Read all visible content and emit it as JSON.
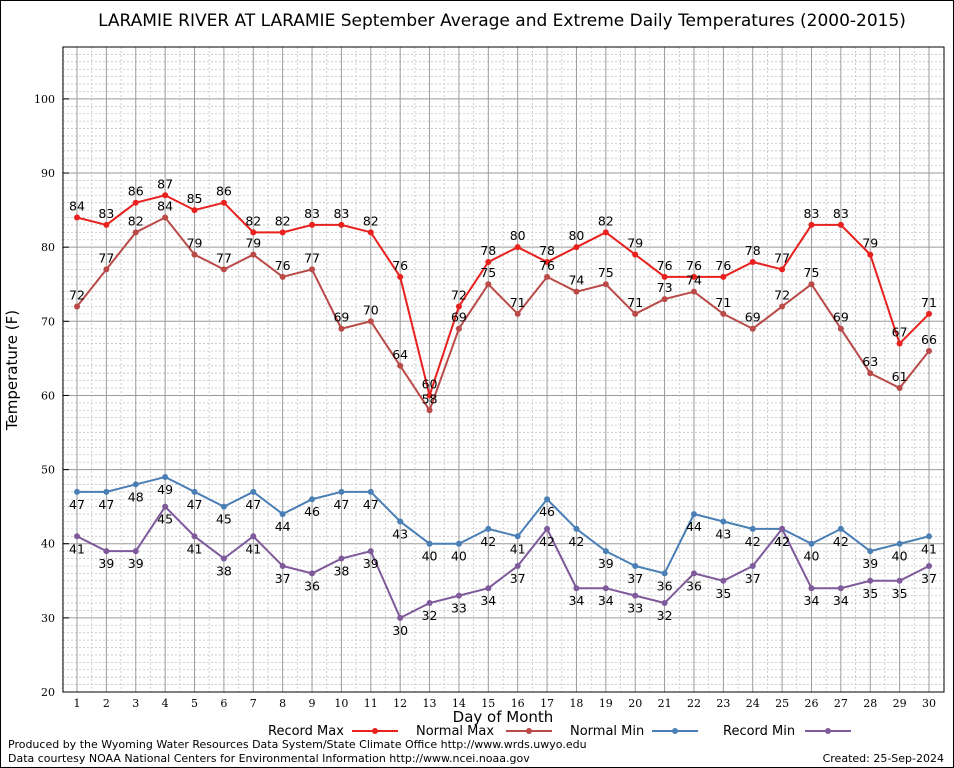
{
  "chart_data": {
    "type": "line",
    "title": "LARAMIE RIVER AT LARAMIE September Average and Extreme Daily Temperatures (2000-2015)",
    "xlabel": "Day of Month",
    "ylabel": "Temperature (F)",
    "x": [
      1,
      2,
      3,
      4,
      5,
      6,
      7,
      8,
      9,
      10,
      11,
      12,
      13,
      14,
      15,
      16,
      17,
      18,
      19,
      20,
      21,
      22,
      23,
      24,
      25,
      26,
      27,
      28,
      29,
      30
    ],
    "xlim": [
      1,
      30
    ],
    "ylim": [
      20,
      107
    ],
    "yticks": [
      20,
      30,
      40,
      50,
      60,
      70,
      80,
      90,
      100
    ],
    "grid": true,
    "legend_position": "bottom",
    "series": [
      {
        "name": "Record Max",
        "color": "#e8201e",
        "values": [
          84,
          83,
          86,
          87,
          85,
          86,
          82,
          82,
          83,
          83,
          82,
          76,
          60,
          72,
          78,
          80,
          78,
          80,
          82,
          79,
          76,
          76,
          76,
          78,
          77,
          83,
          83,
          79,
          67,
          71
        ]
      },
      {
        "name": "Normal Max",
        "color": "#b94a48",
        "values": [
          72,
          77,
          82,
          84,
          79,
          77,
          79,
          76,
          77,
          69,
          70,
          64,
          58,
          69,
          75,
          71,
          76,
          74,
          75,
          71,
          73,
          74,
          71,
          69,
          72,
          75,
          69,
          63,
          61,
          66
        ]
      },
      {
        "name": "Normal Min",
        "color": "#4a7fb5",
        "values": [
          47,
          47,
          48,
          49,
          47,
          45,
          47,
          44,
          46,
          47,
          47,
          43,
          40,
          40,
          42,
          41,
          46,
          42,
          39,
          37,
          36,
          44,
          43,
          42,
          42,
          40,
          42,
          39,
          40,
          41
        ]
      },
      {
        "name": "Record Min",
        "color": "#7f5a9b",
        "values": [
          41,
          39,
          39,
          45,
          41,
          38,
          41,
          37,
          36,
          38,
          39,
          30,
          32,
          33,
          34,
          37,
          42,
          34,
          34,
          33,
          32,
          36,
          35,
          37,
          42,
          34,
          34,
          35,
          35,
          37
        ]
      }
    ]
  },
  "footer": {
    "credit_line1": "Produced by the Wyoming Water Resources Data System/State Climate Office http://www.wrds.uwyo.edu",
    "credit_line2": "Data courtesy NOAA National Centers for Environmental Information http://www.ncei.noaa.gov",
    "created": "Created:  25-Sep-2024"
  }
}
